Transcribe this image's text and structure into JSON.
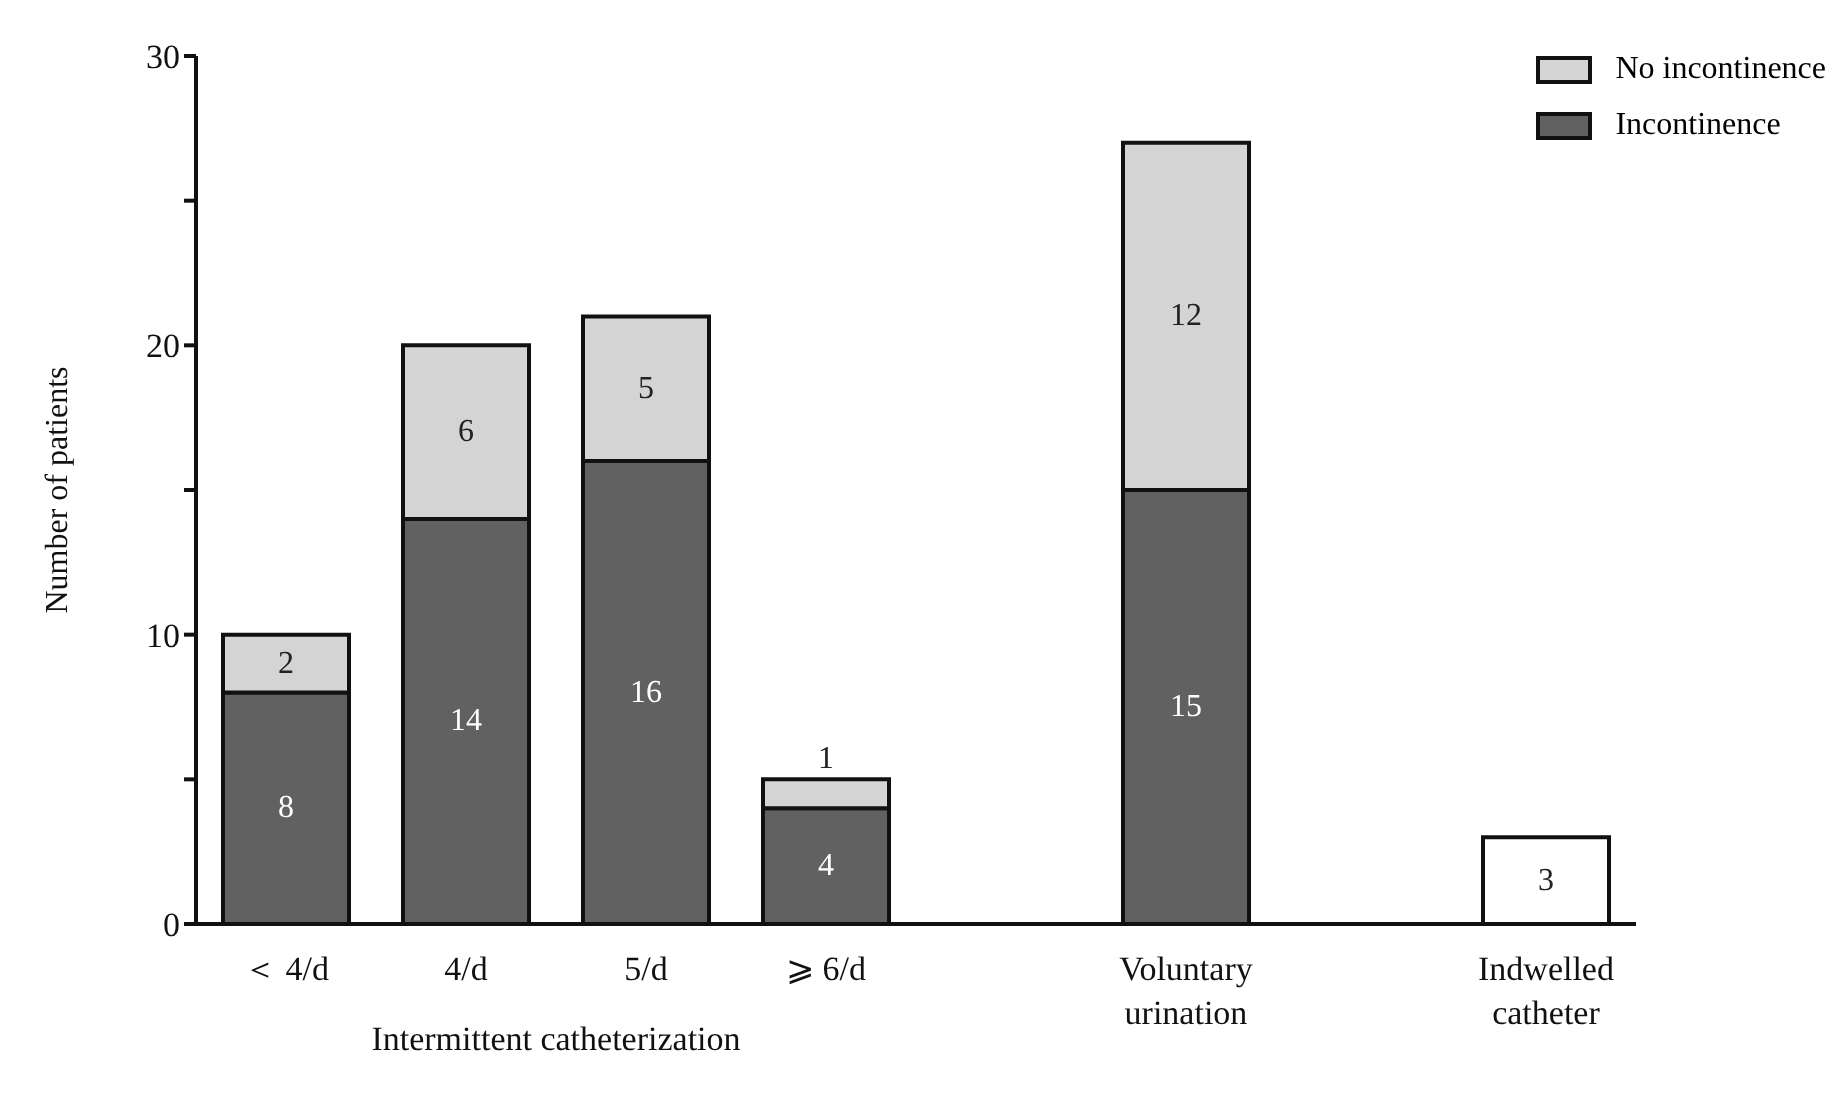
{
  "chart_data": {
    "type": "bar",
    "stacked": true,
    "ylabel": "Number of patients",
    "categories": [
      "＜ 4/d",
      "4/d",
      "5/d",
      "⩾ 6/d",
      null,
      "Voluntary urination",
      null,
      "Indwelled catheter"
    ],
    "series": [
      {
        "name": "Incontinence",
        "color": "#616161",
        "values": [
          8,
          14,
          16,
          4,
          null,
          15,
          null,
          null
        ]
      },
      {
        "name": "No incontinence",
        "color": "#d4d4d4",
        "values": [
          2,
          6,
          5,
          1,
          null,
          12,
          null,
          null
        ]
      },
      {
        "color": "#ffffff",
        "values": [
          null,
          null,
          null,
          null,
          null,
          null,
          null,
          3
        ]
      }
    ],
    "ylim": [
      0,
      30
    ],
    "yticks": [
      0,
      {
        "value": 5,
        "label": null
      },
      10,
      {
        "value": 15,
        "label": null
      },
      20,
      {
        "value": 25,
        "label": null
      },
      30
    ],
    "data_labels": true,
    "legend": "top right",
    "grid": false,
    "annotations": [
      "Intermittent catheterization"
    ]
  }
}
